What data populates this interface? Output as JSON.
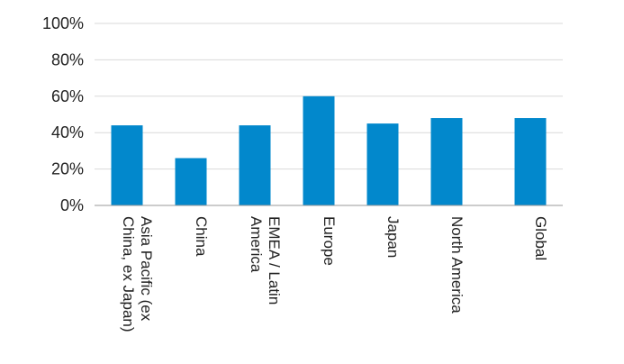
{
  "colors": {
    "bar": "#0288cc",
    "grid": "#d9d9d9",
    "axis": "#9a9a9a",
    "text": "#222222"
  },
  "chart_data": {
    "type": "bar",
    "categories": [
      [
        "Asia Pacific (ex",
        "China, ex Japan)"
      ],
      [
        "China"
      ],
      [
        "EMEA / Latin",
        "America"
      ],
      [
        "Europe"
      ],
      [
        "Japan"
      ],
      [
        "North America"
      ],
      [
        "Global"
      ]
    ],
    "values": [
      44,
      26,
      44,
      60,
      45,
      48,
      48
    ],
    "ylim": [
      0,
      100
    ],
    "yticks": [
      "0%",
      "20%",
      "40%",
      "60%",
      "80%",
      "100%"
    ],
    "grid": true,
    "legend": "none",
    "title": "",
    "xlabel": "",
    "ylabel": ""
  }
}
